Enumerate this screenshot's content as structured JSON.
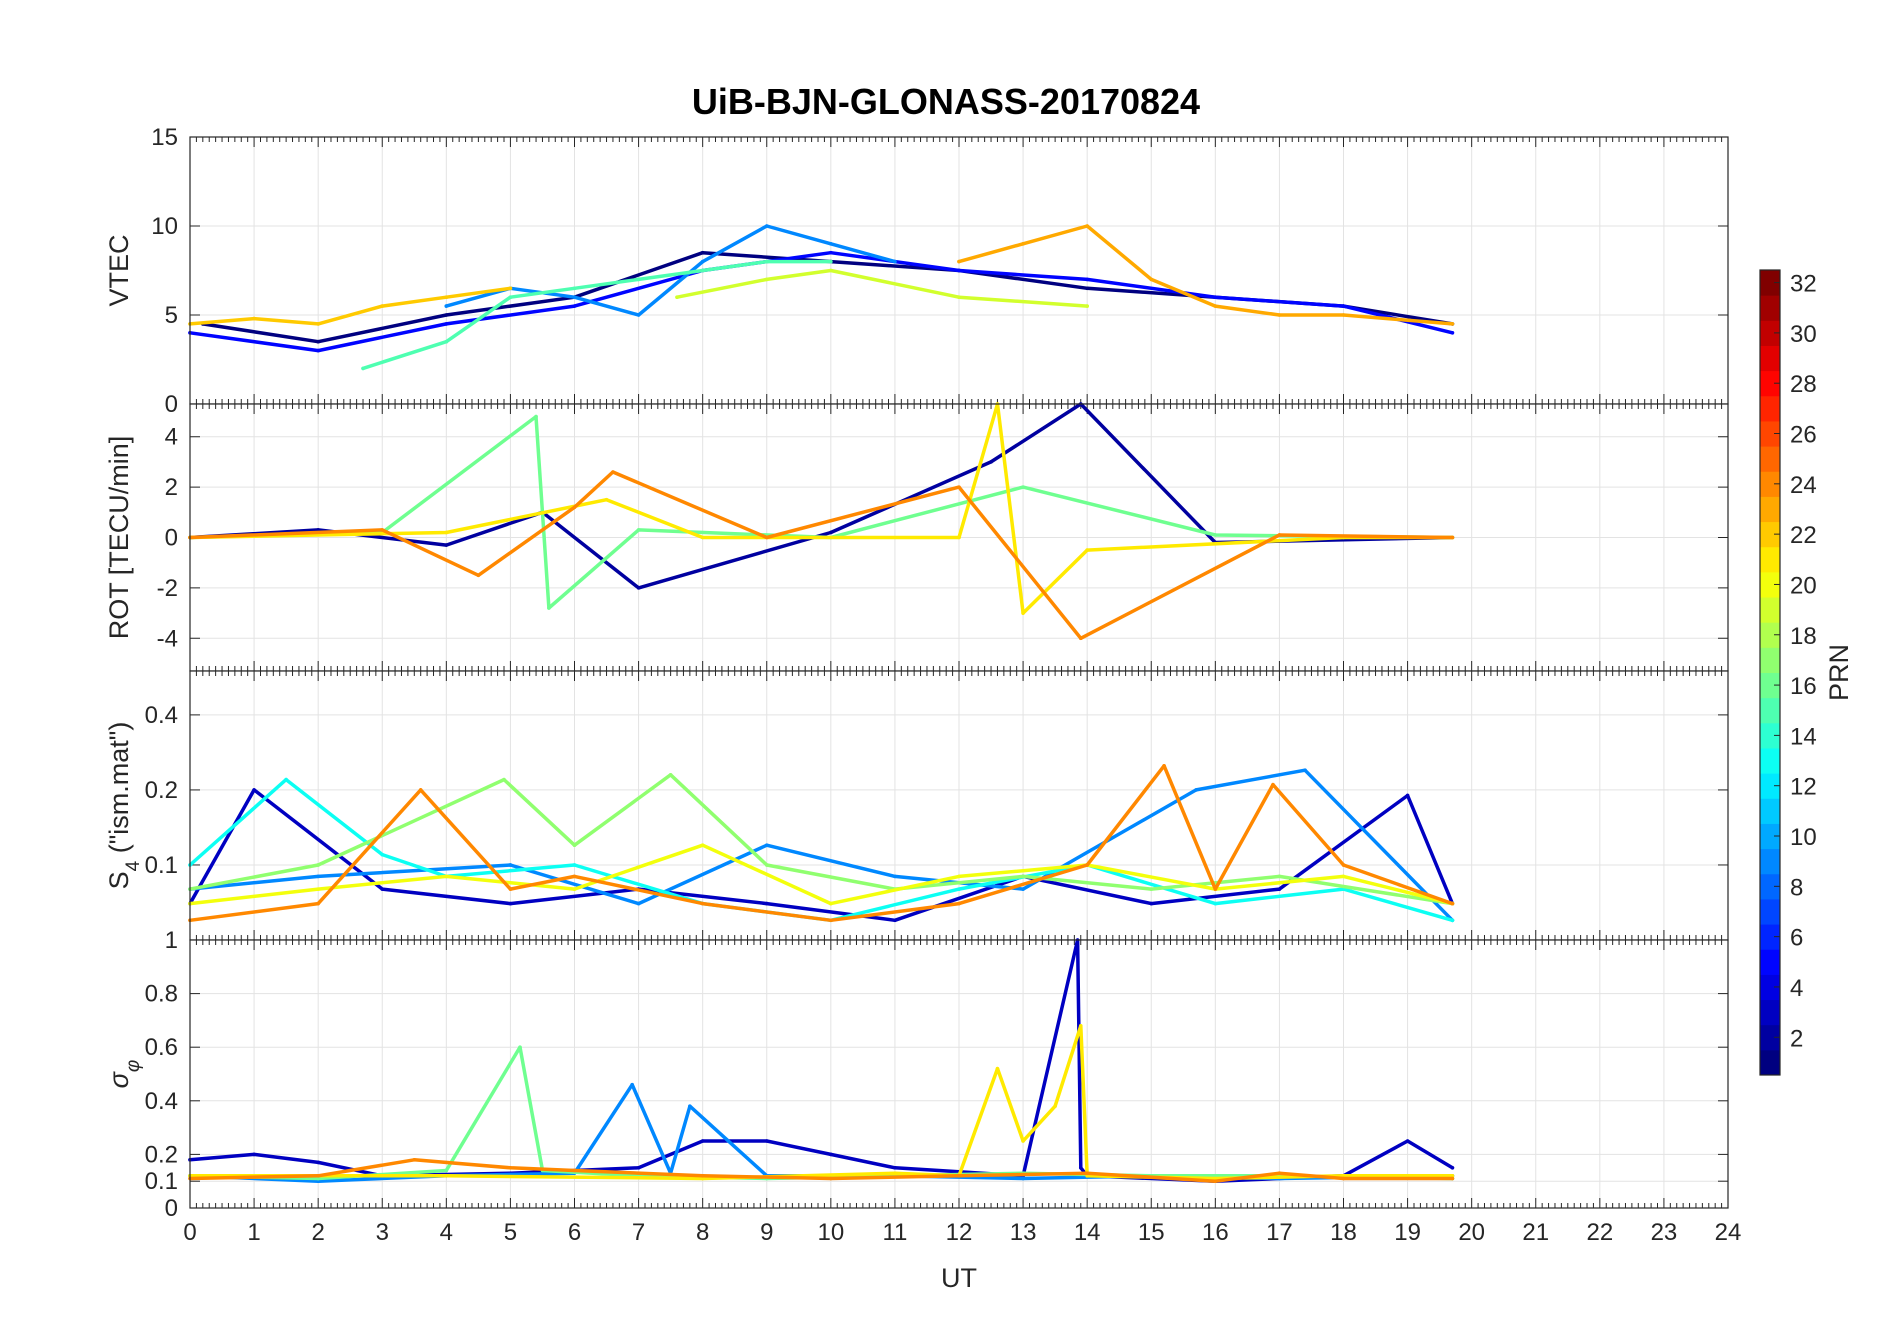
{
  "title": "UiB-BJN-GLONASS-20170824",
  "xlabel": "UT",
  "x_ticks": [
    "0",
    "1",
    "2",
    "3",
    "4",
    "5",
    "6",
    "7",
    "8",
    "9",
    "10",
    "11",
    "12",
    "13",
    "14",
    "15",
    "16",
    "17",
    "18",
    "19",
    "20",
    "21",
    "22",
    "23",
    "24"
  ],
  "colorbar": {
    "label": "PRN",
    "range": [
      1,
      32
    ],
    "ticks": [
      "2",
      "4",
      "6",
      "8",
      "10",
      "12",
      "14",
      "16",
      "18",
      "20",
      "22",
      "24",
      "26",
      "28",
      "30",
      "32"
    ],
    "colormap": "jet"
  },
  "chart_data": [
    {
      "type": "line",
      "panel": "VTEC",
      "ylabel": "VTEC",
      "xlim": [
        0,
        24
      ],
      "ylim": [
        0,
        15
      ],
      "y_ticks": [
        "0",
        "5",
        "10",
        "15"
      ],
      "grid": true,
      "series": [
        {
          "prn": 1,
          "x": [
            0.2,
            2,
            4,
            6,
            8,
            10,
            12,
            14,
            16,
            18,
            19.7
          ],
          "values": [
            4.5,
            3.5,
            5,
            6,
            8.5,
            8,
            7.5,
            6.5,
            6,
            5.5,
            4.5
          ]
        },
        {
          "prn": 5,
          "x": [
            0,
            2,
            4,
            6,
            8,
            10,
            12,
            14,
            16,
            18,
            19.7
          ],
          "values": [
            4,
            3,
            4.5,
            5.5,
            7.5,
            8.5,
            7.5,
            7,
            6,
            5.5,
            4
          ]
        },
        {
          "prn": 9,
          "x": [
            4,
            5,
            6,
            7,
            8,
            9,
            10,
            11
          ],
          "values": [
            5.5,
            6.5,
            6,
            5,
            8,
            10,
            9,
            8
          ]
        },
        {
          "prn": 15,
          "x": [
            2.7,
            4,
            5,
            6,
            7,
            8,
            9,
            10
          ],
          "values": [
            2,
            3.5,
            6,
            6.5,
            7,
            7.5,
            8,
            8
          ]
        },
        {
          "prn": 19,
          "x": [
            7.6,
            9,
            10,
            12,
            14
          ],
          "values": [
            6,
            7,
            7.5,
            6,
            5.5
          ]
        },
        {
          "prn": 22,
          "x": [
            0,
            1,
            2,
            3,
            4,
            5
          ],
          "values": [
            4.5,
            4.8,
            4.5,
            5.5,
            6,
            6.5
          ]
        },
        {
          "prn": 23,
          "x": [
            12,
            13,
            14,
            15,
            16,
            17,
            18,
            19.7
          ],
          "values": [
            8,
            9,
            10,
            7,
            5.5,
            5,
            5,
            4.5
          ]
        }
      ]
    },
    {
      "type": "line",
      "panel": "ROT",
      "ylabel": "ROT [TECU/min]",
      "xlim": [
        0,
        24
      ],
      "ylim": [
        -5.3,
        5.3
      ],
      "y_ticks": [
        "-4",
        "-2",
        "0",
        "2",
        "4"
      ],
      "grid": true,
      "series": [
        {
          "prn": 2,
          "x": [
            0,
            2,
            4,
            5.5,
            7,
            10,
            12.5,
            13.9,
            16,
            19.7
          ],
          "values": [
            0,
            0.3,
            -0.3,
            1,
            -2,
            0.2,
            3,
            5.3,
            -0.2,
            0
          ]
        },
        {
          "prn": 16,
          "x": [
            0,
            3,
            5.4,
            5.6,
            7,
            10,
            13,
            16,
            19.7
          ],
          "values": [
            0,
            0.2,
            4.8,
            -2.8,
            0.3,
            0,
            2,
            0.1,
            0
          ]
        },
        {
          "prn": 21,
          "x": [
            0,
            4,
            6.5,
            8,
            12,
            12.6,
            13,
            14,
            18,
            19.7
          ],
          "values": [
            0,
            0.2,
            1.5,
            0,
            0,
            5.3,
            -3,
            -0.5,
            0,
            0
          ]
        },
        {
          "prn": 24,
          "x": [
            0,
            3,
            4.5,
            6,
            6.6,
            9,
            12,
            13.9,
            17,
            19.7
          ],
          "values": [
            0,
            0.3,
            -1.5,
            1.2,
            2.6,
            0,
            2,
            -4,
            0.1,
            0
          ]
        }
      ]
    },
    {
      "type": "line",
      "panel": "S4",
      "ylabel": "S4 (\"ism.mat\")",
      "ylabel_main": "S",
      "ylabel_sub": "4",
      "ylabel_rest": " (\"ism.mat\")",
      "xlim": [
        0,
        24
      ],
      "ylim": [
        0.05,
        0.6
      ],
      "y_ticks": [
        "0.1",
        "0.2",
        "0.4"
      ],
      "y_scale": "log",
      "grid": true,
      "series": [
        {
          "prn": 3,
          "x": [
            0,
            1,
            3,
            5,
            7,
            9,
            11,
            13,
            15,
            17,
            19,
            19.7
          ],
          "values": [
            0.07,
            0.2,
            0.08,
            0.07,
            0.08,
            0.07,
            0.06,
            0.09,
            0.07,
            0.08,
            0.19,
            0.07
          ]
        },
        {
          "prn": 9,
          "x": [
            0,
            2,
            5,
            7,
            9,
            11,
            13,
            15.7,
            17.4,
            19.7
          ],
          "values": [
            0.08,
            0.09,
            0.1,
            0.07,
            0.12,
            0.09,
            0.08,
            0.2,
            0.24,
            0.06
          ]
        },
        {
          "prn": 13,
          "x": [
            0,
            1.5,
            3,
            4,
            6,
            8,
            10,
            12,
            14,
            16,
            18,
            19.7
          ],
          "values": [
            0.1,
            0.22,
            0.11,
            0.09,
            0.1,
            0.07,
            0.06,
            0.08,
            0.1,
            0.07,
            0.08,
            0.06
          ]
        },
        {
          "prn": 17,
          "x": [
            0,
            2,
            4.9,
            6,
            7.5,
            9,
            11,
            13,
            15,
            17,
            19.7
          ],
          "values": [
            0.08,
            0.1,
            0.22,
            0.12,
            0.23,
            0.1,
            0.08,
            0.09,
            0.08,
            0.09,
            0.07
          ]
        },
        {
          "prn": 20,
          "x": [
            0,
            2,
            4,
            6,
            8,
            10,
            12,
            14,
            16,
            18,
            19.7
          ],
          "values": [
            0.07,
            0.08,
            0.09,
            0.08,
            0.12,
            0.07,
            0.09,
            0.1,
            0.08,
            0.09,
            0.07
          ]
        },
        {
          "prn": 24,
          "x": [
            0,
            2,
            3.6,
            5,
            6,
            8,
            10,
            12,
            14,
            15.2,
            16,
            16.9,
            18,
            19.7
          ],
          "values": [
            0.06,
            0.07,
            0.2,
            0.08,
            0.09,
            0.07,
            0.06,
            0.07,
            0.1,
            0.25,
            0.08,
            0.21,
            0.1,
            0.07
          ]
        }
      ]
    },
    {
      "type": "line",
      "panel": "sigma_phi",
      "ylabel": "σφ",
      "ylabel_main": "σ",
      "ylabel_sub": "φ",
      "xlim": [
        0,
        24
      ],
      "ylim": [
        0,
        1
      ],
      "y_ticks": [
        "0",
        "0.1",
        "0.2",
        "0.4",
        "0.6",
        "0.8",
        "1"
      ],
      "grid": true,
      "series": [
        {
          "prn": 3,
          "x": [
            0,
            1,
            2,
            3,
            5,
            7,
            8,
            9,
            10,
            11,
            13,
            13.85,
            13.9,
            14,
            16,
            18,
            19,
            19.7
          ],
          "values": [
            0.18,
            0.2,
            0.17,
            0.12,
            0.13,
            0.15,
            0.25,
            0.25,
            0.2,
            0.15,
            0.12,
            1.0,
            0.15,
            0.12,
            0.1,
            0.12,
            0.25,
            0.15
          ]
        },
        {
          "prn": 9,
          "x": [
            0,
            2,
            4,
            6,
            6.9,
            7.5,
            7.8,
            9,
            11,
            13,
            15,
            17,
            19.7
          ],
          "values": [
            0.12,
            0.1,
            0.12,
            0.13,
            0.46,
            0.13,
            0.38,
            0.12,
            0.12,
            0.11,
            0.12,
            0.11,
            0.12
          ]
        },
        {
          "prn": 16,
          "x": [
            0,
            2,
            4,
            5.15,
            5.5,
            7,
            9,
            11,
            13,
            15,
            17,
            19.7
          ],
          "values": [
            0.12,
            0.11,
            0.14,
            0.6,
            0.14,
            0.12,
            0.11,
            0.12,
            0.13,
            0.12,
            0.12,
            0.11
          ]
        },
        {
          "prn": 21,
          "x": [
            0,
            4,
            8,
            11,
            12,
            12.6,
            13,
            13.5,
            13.9,
            14,
            16,
            18,
            19.7
          ],
          "values": [
            0.12,
            0.12,
            0.11,
            0.13,
            0.12,
            0.52,
            0.25,
            0.38,
            0.68,
            0.12,
            0.11,
            0.12,
            0.12
          ]
        },
        {
          "prn": 24,
          "x": [
            0,
            2,
            3.5,
            5,
            6,
            8,
            10,
            12,
            14,
            16,
            17,
            18,
            19.7
          ],
          "values": [
            0.11,
            0.12,
            0.18,
            0.15,
            0.14,
            0.12,
            0.11,
            0.12,
            0.13,
            0.1,
            0.13,
            0.11,
            0.11
          ]
        }
      ]
    }
  ]
}
